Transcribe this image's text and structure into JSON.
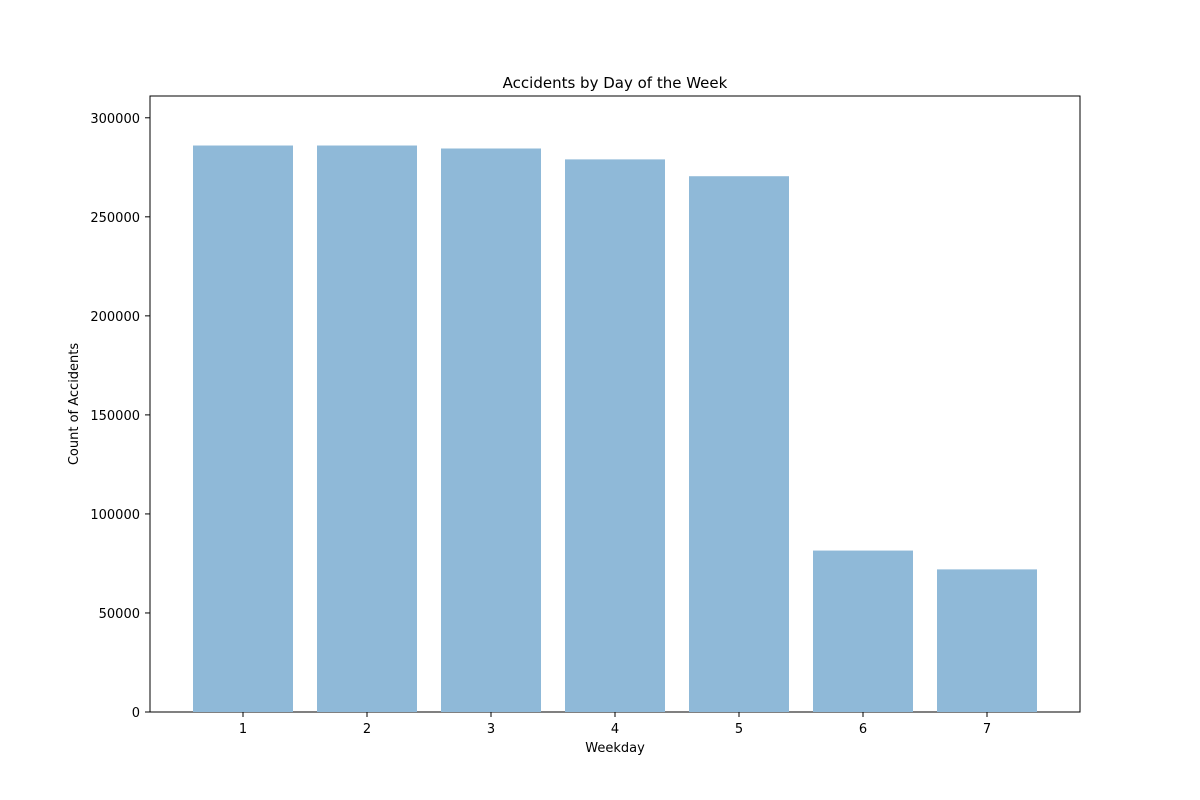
{
  "chart_data": {
    "type": "bar",
    "title": "Accidents by Day of the Week",
    "xlabel": "Weekday",
    "ylabel": "Count of Accidents",
    "categories": [
      "1",
      "2",
      "3",
      "4",
      "5",
      "6",
      "7"
    ],
    "values": [
      286000,
      286000,
      284500,
      279000,
      270500,
      81500,
      72000
    ],
    "ylim": [
      0,
      311000
    ],
    "yticks": [
      0,
      50000,
      100000,
      150000,
      200000,
      250000,
      300000
    ],
    "ytick_labels": [
      "0",
      "50000",
      "100000",
      "150000",
      "200000",
      "250000",
      "300000"
    ],
    "grid": false,
    "legend": "none",
    "bar_color": "#8fb9d8"
  }
}
